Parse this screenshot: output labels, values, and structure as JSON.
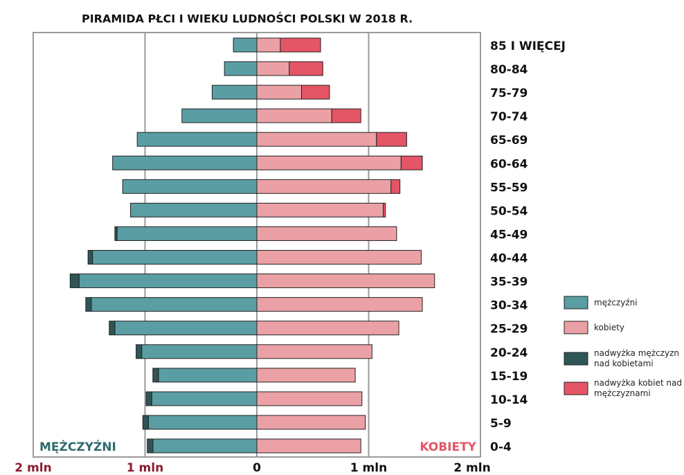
{
  "chart_data": {
    "type": "bar",
    "orientation": "horizontal",
    "title": "PIRAMIDA PŁCI I WIEKU LUDNOŚCI POLSKI W 2018 R.",
    "annotations": [
      "MĘŻCZYŹNI",
      "KOBIETY"
    ],
    "categories": [
      "85 I WIĘCEJ",
      "80-84",
      "75-79",
      "70-74",
      "65-69",
      "60-64",
      "55-59",
      "50-54",
      "45-49",
      "40-44",
      "35-39",
      "30-34",
      "25-29",
      "20-24",
      "15-19",
      "10-14",
      "5-9",
      "0-4"
    ],
    "series": [
      {
        "name": "mężczyźni",
        "color": "#5a9ea3",
        "side": "left",
        "values": [
          0.21,
          0.29,
          0.4,
          0.67,
          1.07,
          1.29,
          1.2,
          1.13,
          1.25,
          1.47,
          1.59,
          1.48,
          1.27,
          1.03,
          0.88,
          0.94,
          0.97,
          0.93
        ]
      },
      {
        "name": "kobiety",
        "color": "#eba0a6",
        "side": "right",
        "values": [
          0.21,
          0.29,
          0.4,
          0.67,
          1.07,
          1.29,
          1.2,
          1.13,
          1.25,
          1.47,
          1.59,
          1.48,
          1.27,
          1.03,
          0.88,
          0.94,
          0.97,
          0.93
        ]
      },
      {
        "name": "nadwyżka mężczyzn nad kobietami",
        "color": "#2f5557",
        "side": "left",
        "values": [
          0,
          0,
          0,
          0,
          0,
          0,
          0,
          0,
          0.02,
          0.04,
          0.08,
          0.05,
          0.05,
          0.05,
          0.05,
          0.05,
          0.05,
          0.05
        ]
      },
      {
        "name": "nadwyżka kobiet nad mężczyznami",
        "color": "#e45565",
        "side": "right",
        "values": [
          0.36,
          0.3,
          0.25,
          0.26,
          0.27,
          0.19,
          0.08,
          0.02,
          0,
          0,
          0,
          0,
          0,
          0,
          0,
          0,
          0,
          0
        ]
      }
    ],
    "xlim": [
      -2,
      2
    ],
    "xticks": [
      {
        "value": -2,
        "label": "2 mln"
      },
      {
        "value": -1,
        "label": "1 mln"
      },
      0,
      {
        "value": 1,
        "label": "1 mln"
      },
      {
        "value": 2,
        "label": "2 mln"
      }
    ],
    "grid": true
  }
}
